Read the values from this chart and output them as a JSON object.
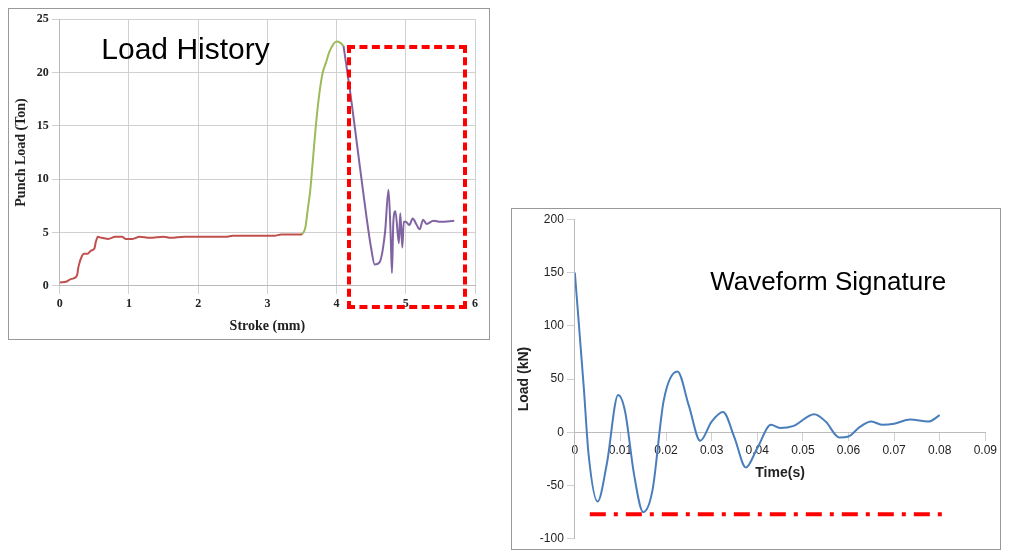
{
  "chart_data": [
    {
      "type": "line",
      "title": "Load History",
      "xlabel": "Stroke (mm)",
      "ylabel": "Punch Load (Ton)",
      "xlim": [
        0,
        6
      ],
      "xticks": [
        0,
        1,
        2,
        3,
        4,
        5,
        6
      ],
      "ylim": [
        0,
        25
      ],
      "yticks": [
        0,
        5,
        10,
        15,
        20,
        25
      ],
      "grid": true,
      "legend": false,
      "marker": "none",
      "series": [
        {
          "color": "#c0504d",
          "x": [
            0,
            0.1,
            0.15,
            0.2,
            0.25,
            0.27,
            0.32,
            0.35,
            0.4,
            0.45,
            0.5,
            0.52,
            0.55,
            0.6,
            0.7,
            0.8,
            0.9,
            0.95,
            1.05,
            1.15,
            1.3,
            1.5,
            1.6,
            1.8,
            2.4,
            2.5,
            3.1,
            3.2,
            3.5
          ],
          "values": [
            0.3,
            0.4,
            0.6,
            0.7,
            1.0,
            1.8,
            2.8,
            3.0,
            3.0,
            3.3,
            3.5,
            4.1,
            4.6,
            4.5,
            4.4,
            4.6,
            4.6,
            4.4,
            4.4,
            4.6,
            4.5,
            4.6,
            4.5,
            4.6,
            4.6,
            4.7,
            4.7,
            4.8,
            4.8
          ]
        },
        {
          "color": "#9bbb59",
          "x": [
            3.5,
            3.55,
            3.58,
            3.62,
            3.66,
            3.7,
            3.75,
            3.8,
            3.85,
            3.9,
            4.0,
            4.05,
            4.1
          ],
          "values": [
            4.8,
            5.5,
            7,
            9,
            12,
            15,
            18,
            20,
            21,
            22,
            22.9,
            22.8,
            22.5
          ]
        },
        {
          "color": "#8064a2",
          "x": [
            4.1,
            4.2,
            4.3,
            4.4,
            4.5,
            4.55,
            4.62,
            4.7,
            4.75,
            4.78,
            4.8,
            4.82,
            4.85,
            4.9,
            4.92,
            4.95,
            4.97,
            5.0,
            5.05,
            5.1,
            5.15,
            5.2,
            5.25,
            5.3,
            5.4,
            5.5,
            5.7
          ],
          "values": [
            22.5,
            18,
            13,
            8,
            3.5,
            2,
            2.2,
            5,
            9,
            5,
            1.2,
            6,
            7,
            4,
            6.8,
            3.6,
            6,
            6,
            5.7,
            6.3,
            5.8,
            5.3,
            6.2,
            5.8,
            6.1,
            6,
            6.1
          ]
        }
      ]
    },
    {
      "type": "line",
      "title": "Waveform Signature",
      "xlabel": "Time(s)",
      "ylabel": "Load (kN)",
      "xlim": [
        0,
        0.09
      ],
      "xticks": [
        0,
        0.01,
        0.02,
        0.03,
        0.04,
        0.05,
        0.06,
        0.07,
        0.08,
        0.09
      ],
      "ylim": [
        -100,
        200
      ],
      "yticks": [
        -100,
        -50,
        0,
        50,
        100,
        150,
        200
      ],
      "grid": false,
      "legend": false,
      "marker": "none",
      "ref_lines": [
        {
          "axis": "y",
          "value": -77,
          "color": "#ff0000",
          "line_style": "dashed"
        }
      ],
      "series": [
        {
          "color": "#4a7ebb",
          "x": [
            0,
            0.002,
            0.003,
            0.005,
            0.007,
            0.0095,
            0.011,
            0.013,
            0.015,
            0.017,
            0.0195,
            0.0225,
            0.025,
            0.0275,
            0.03,
            0.0325,
            0.035,
            0.0375,
            0.04,
            0.043,
            0.045,
            0.048,
            0.0525,
            0.055,
            0.058,
            0.06,
            0.0625,
            0.065,
            0.0675,
            0.07,
            0.0735,
            0.0775,
            0.08
          ],
          "values": [
            150,
            40,
            -20,
            -65,
            -30,
            35,
            20,
            -40,
            -75,
            -55,
            30,
            57,
            25,
            -8,
            10,
            19,
            -5,
            -33,
            -15,
            7,
            4,
            6,
            17,
            10,
            -5,
            -4,
            5,
            10,
            7,
            8,
            12,
            10,
            16
          ]
        }
      ]
    }
  ]
}
